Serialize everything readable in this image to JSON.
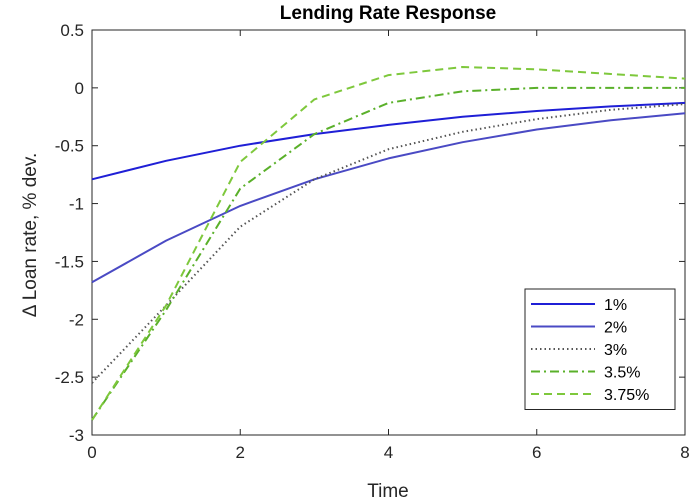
{
  "chart_data": {
    "type": "line",
    "title": "Lending Rate Response",
    "xlabel": "Time",
    "ylabel": "Δ Loan rate, % dev.",
    "xlim": [
      0,
      8
    ],
    "ylim": [
      -3,
      0.5
    ],
    "xticks": [
      0,
      2,
      4,
      6,
      8
    ],
    "yticks": [
      0.5,
      0,
      -0.5,
      -1,
      -1.5,
      -2,
      -2.5,
      -3
    ],
    "ytick_labels": [
      "0.5",
      "0",
      "-0.5",
      "-1",
      "-1.5",
      "-2",
      "-2.5",
      "-3"
    ],
    "xtick_labels": [
      "0",
      "2",
      "4",
      "6",
      "8"
    ],
    "grid": false,
    "legend_position": "bottom-right",
    "x": [
      0,
      1,
      2,
      3,
      4,
      5,
      6,
      7,
      8
    ],
    "series": [
      {
        "name": "1%",
        "color": "#1f1fd6",
        "style": "solid",
        "values": [
          -0.79,
          -0.63,
          -0.5,
          -0.4,
          -0.32,
          -0.25,
          -0.2,
          -0.16,
          -0.13
        ]
      },
      {
        "name": "2%",
        "color": "#4a4ac4",
        "style": "solid",
        "values": [
          -1.68,
          -1.32,
          -1.02,
          -0.79,
          -0.61,
          -0.47,
          -0.36,
          -0.28,
          -0.22
        ]
      },
      {
        "name": "3%",
        "color": "#555555",
        "style": "dotted",
        "values": [
          -2.55,
          -1.88,
          -1.2,
          -0.79,
          -0.53,
          -0.38,
          -0.27,
          -0.19,
          -0.14
        ]
      },
      {
        "name": "3.5%",
        "color": "#5ab02a",
        "style": "dashdot",
        "values": [
          -2.87,
          -1.92,
          -0.87,
          -0.4,
          -0.13,
          -0.03,
          0.0,
          0.0,
          0.0
        ]
      },
      {
        "name": "3.75%",
        "color": "#7ec83c",
        "style": "dashed",
        "values": [
          -2.87,
          -1.88,
          -0.64,
          -0.1,
          0.11,
          0.18,
          0.16,
          0.12,
          0.08
        ]
      }
    ]
  }
}
